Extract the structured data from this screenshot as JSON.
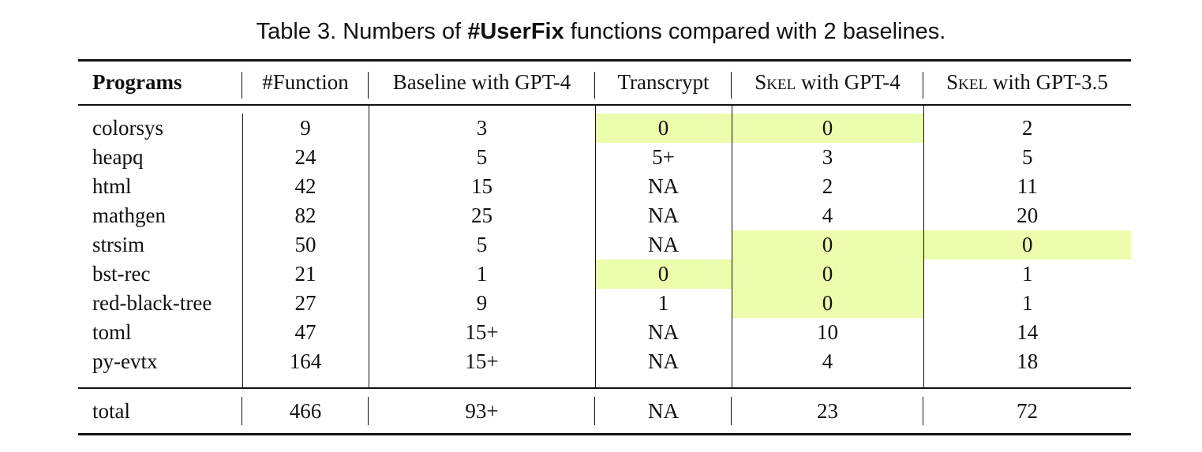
{
  "caption": {
    "prefix": "Table 3.  Numbers of ",
    "bold": "#UserFix",
    "suffix": " functions compared with 2 baselines."
  },
  "header": {
    "programs": "Programs",
    "function": "#Function",
    "baseline": "Baseline with GPT-4",
    "transcrypt": "Transcrypt",
    "skel4_name": "Skel",
    "skel4_rest": " with GPT-4",
    "skel35_name": "Skel",
    "skel35_rest": " with GPT-3.5"
  },
  "rows": [
    {
      "program": "colorsys",
      "function": "9",
      "baseline": "3",
      "transcrypt": "0",
      "skel4": "0",
      "skel35": "2"
    },
    {
      "program": "heapq",
      "function": "24",
      "baseline": "5",
      "transcrypt": "5+",
      "skel4": "3",
      "skel35": "5"
    },
    {
      "program": "html",
      "function": "42",
      "baseline": "15",
      "transcrypt": "NA",
      "skel4": "2",
      "skel35": "11"
    },
    {
      "program": "mathgen",
      "function": "82",
      "baseline": "25",
      "transcrypt": "NA",
      "skel4": "4",
      "skel35": "20"
    },
    {
      "program": "strsim",
      "function": "50",
      "baseline": "5",
      "transcrypt": "NA",
      "skel4": "0",
      "skel35": "0"
    },
    {
      "program": "bst-rec",
      "function": "21",
      "baseline": "1",
      "transcrypt": "0",
      "skel4": "0",
      "skel35": "1"
    },
    {
      "program": "red-black-tree",
      "function": "27",
      "baseline": "9",
      "transcrypt": "1",
      "skel4": "0",
      "skel35": "1"
    },
    {
      "program": "toml",
      "function": "47",
      "baseline": "15+",
      "transcrypt": "NA",
      "skel4": "10",
      "skel35": "14"
    },
    {
      "program": "py-evtx",
      "function": "164",
      "baseline": "15+",
      "transcrypt": "NA",
      "skel4": "4",
      "skel35": "18"
    }
  ],
  "total": {
    "program": "total",
    "function": "466",
    "baseline": "93+",
    "transcrypt": "NA",
    "skel4": "23",
    "skel35": "72"
  },
  "colors": {
    "highlight": "#ecfcad",
    "rule": "#111111"
  }
}
